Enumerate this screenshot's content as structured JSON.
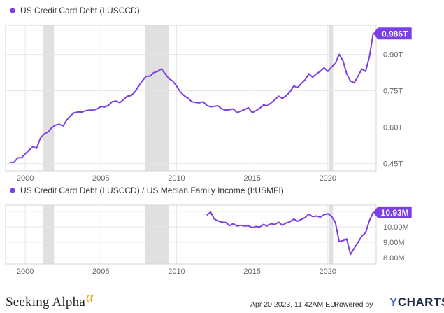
{
  "colors": {
    "series": "#7b3fe4",
    "recession": "#e0e0e0",
    "grid": "#e6e6e6",
    "axis_text": "#666666"
  },
  "chart_data": [
    {
      "type": "line",
      "legend": "US Credit Card Debt (I:USCCD)",
      "series": [
        {
          "name": "US Credit Card Debt (I:USCCD)",
          "points": [
            [
              1999.0,
              0.455
            ],
            [
              1999.25,
              0.455
            ],
            [
              1999.5,
              0.473
            ],
            [
              1999.75,
              0.474
            ],
            [
              2000.0,
              0.49
            ],
            [
              2000.25,
              0.505
            ],
            [
              2000.5,
              0.52
            ],
            [
              2000.75,
              0.513
            ],
            [
              2001.0,
              0.555
            ],
            [
              2001.25,
              0.572
            ],
            [
              2001.5,
              0.58
            ],
            [
              2001.75,
              0.598
            ],
            [
              2002.0,
              0.608
            ],
            [
              2002.25,
              0.612
            ],
            [
              2002.5,
              0.605
            ],
            [
              2002.75,
              0.63
            ],
            [
              2003.0,
              0.648
            ],
            [
              2003.25,
              0.66
            ],
            [
              2003.5,
              0.663
            ],
            [
              2003.75,
              0.662
            ],
            [
              2004.0,
              0.668
            ],
            [
              2004.25,
              0.67
            ],
            [
              2004.5,
              0.67
            ],
            [
              2004.75,
              0.675
            ],
            [
              2005.0,
              0.685
            ],
            [
              2005.25,
              0.683
            ],
            [
              2005.5,
              0.69
            ],
            [
              2005.75,
              0.705
            ],
            [
              2006.0,
              0.708
            ],
            [
              2006.25,
              0.701
            ],
            [
              2006.5,
              0.714
            ],
            [
              2006.75,
              0.728
            ],
            [
              2007.0,
              0.73
            ],
            [
              2007.25,
              0.745
            ],
            [
              2007.5,
              0.77
            ],
            [
              2007.75,
              0.792
            ],
            [
              2008.0,
              0.81
            ],
            [
              2008.25,
              0.81
            ],
            [
              2008.5,
              0.825
            ],
            [
              2008.75,
              0.83
            ],
            [
              2009.0,
              0.84
            ],
            [
              2009.25,
              0.82
            ],
            [
              2009.5,
              0.8
            ],
            [
              2009.75,
              0.79
            ],
            [
              2010.0,
              0.77
            ],
            [
              2010.25,
              0.745
            ],
            [
              2010.5,
              0.73
            ],
            [
              2010.75,
              0.72
            ],
            [
              2011.0,
              0.705
            ],
            [
              2011.25,
              0.702
            ],
            [
              2011.5,
              0.7
            ],
            [
              2011.75,
              0.705
            ],
            [
              2012.0,
              0.69
            ],
            [
              2012.25,
              0.684
            ],
            [
              2012.5,
              0.686
            ],
            [
              2012.75,
              0.688
            ],
            [
              2013.0,
              0.675
            ],
            [
              2013.25,
              0.67
            ],
            [
              2013.5,
              0.672
            ],
            [
              2013.75,
              0.675
            ],
            [
              2014.0,
              0.66
            ],
            [
              2014.25,
              0.666
            ],
            [
              2014.5,
              0.673
            ],
            [
              2014.75,
              0.68
            ],
            [
              2015.0,
              0.66
            ],
            [
              2015.25,
              0.668
            ],
            [
              2015.5,
              0.678
            ],
            [
              2015.75,
              0.692
            ],
            [
              2016.0,
              0.688
            ],
            [
              2016.25,
              0.7
            ],
            [
              2016.5,
              0.713
            ],
            [
              2016.75,
              0.728
            ],
            [
              2017.0,
              0.718
            ],
            [
              2017.25,
              0.73
            ],
            [
              2017.5,
              0.745
            ],
            [
              2017.75,
              0.77
            ],
            [
              2018.0,
              0.763
            ],
            [
              2018.25,
              0.78
            ],
            [
              2018.5,
              0.795
            ],
            [
              2018.75,
              0.82
            ],
            [
              2019.0,
              0.806
            ],
            [
              2019.25,
              0.82
            ],
            [
              2019.5,
              0.83
            ],
            [
              2019.75,
              0.845
            ],
            [
              2020.0,
              0.83
            ],
            [
              2020.25,
              0.848
            ],
            [
              2020.5,
              0.862
            ],
            [
              2020.75,
              0.9
            ],
            [
              2021.0,
              0.875
            ],
            [
              2021.25,
              0.82
            ],
            [
              2021.5,
              0.79
            ],
            [
              2021.75,
              0.783
            ],
            [
              2022.0,
              0.81
            ],
            [
              2022.25,
              0.84
            ],
            [
              2022.5,
              0.83
            ],
            [
              2022.75,
              0.89
            ],
            [
              2023.0,
              0.986
            ]
          ]
        }
      ],
      "xlim": [
        1998.7,
        2023.2
      ],
      "ylim": [
        0.42,
        1.02
      ],
      "x_ticks": [
        2000,
        2005,
        2010,
        2015,
        2020
      ],
      "y_ticks": [
        {
          "value": 0.45,
          "label": "0.45T"
        },
        {
          "value": 0.6,
          "label": "0.60T"
        },
        {
          "value": 0.75,
          "label": "0.75T"
        },
        {
          "value": 0.9,
          "label": "0.90T"
        }
      ],
      "last_value_label": "0.986T",
      "recessions": [
        [
          2001.2,
          2001.9
        ],
        [
          2007.9,
          2009.5
        ],
        [
          2020.1,
          2020.35
        ]
      ],
      "grid": true,
      "y_axis_side": "right"
    },
    {
      "type": "line",
      "legend": "US Credit Card Debt (I:USCCD) / US Median Family Income (I:USMFI)",
      "series": [
        {
          "name": "US Credit Card Debt (I:USCCD) / US Median Family Income (I:USMFI)",
          "points": [
            [
              2012.0,
              10.75
            ],
            [
              2012.25,
              10.95
            ],
            [
              2012.5,
              10.5
            ],
            [
              2012.75,
              10.38
            ],
            [
              2013.0,
              10.3
            ],
            [
              2013.25,
              10.28
            ],
            [
              2013.5,
              10.08
            ],
            [
              2013.75,
              10.2
            ],
            [
              2014.0,
              10.05
            ],
            [
              2014.25,
              10.1
            ],
            [
              2014.5,
              10.05
            ],
            [
              2014.75,
              10.07
            ],
            [
              2015.0,
              9.94
            ],
            [
              2015.25,
              10.02
            ],
            [
              2015.5,
              9.98
            ],
            [
              2015.75,
              10.15
            ],
            [
              2016.0,
              10.05
            ],
            [
              2016.25,
              10.2
            ],
            [
              2016.5,
              10.15
            ],
            [
              2016.75,
              10.3
            ],
            [
              2017.0,
              10.1
            ],
            [
              2017.25,
              10.25
            ],
            [
              2017.5,
              10.33
            ],
            [
              2017.75,
              10.5
            ],
            [
              2018.0,
              10.36
            ],
            [
              2018.25,
              10.48
            ],
            [
              2018.5,
              10.6
            ],
            [
              2018.75,
              10.82
            ],
            [
              2019.0,
              10.66
            ],
            [
              2019.25,
              10.7
            ],
            [
              2019.5,
              10.63
            ],
            [
              2019.75,
              10.78
            ],
            [
              2020.0,
              10.85
            ],
            [
              2020.25,
              10.68
            ],
            [
              2020.5,
              10.28
            ],
            [
              2020.75,
              9.05
            ],
            [
              2021.0,
              9.1
            ],
            [
              2021.25,
              9.22
            ],
            [
              2021.5,
              8.22
            ],
            [
              2021.75,
              8.62
            ],
            [
              2022.0,
              9.0
            ],
            [
              2022.25,
              9.4
            ],
            [
              2022.5,
              9.62
            ],
            [
              2022.75,
              10.4
            ],
            [
              2023.0,
              10.93
            ]
          ]
        }
      ],
      "xlim": [
        1998.7,
        2023.2
      ],
      "ylim": [
        7.6,
        11.4
      ],
      "x_ticks": [
        2000,
        2005,
        2010,
        2015,
        2020
      ],
      "y_ticks": [
        {
          "value": 8.0,
          "label": "8.00M"
        },
        {
          "value": 9.0,
          "label": "9.00M"
        },
        {
          "value": 10.0,
          "label": "10.00M"
        },
        {
          "value": 11.0,
          "label": "11.00M"
        }
      ],
      "last_value_label": "10.93M",
      "recessions": [
        [
          2001.2,
          2001.9
        ],
        [
          2007.9,
          2009.5
        ],
        [
          2020.1,
          2020.35
        ]
      ],
      "grid": true,
      "y_axis_side": "right"
    }
  ],
  "footer": {
    "brand": "Seeking Alpha",
    "brand_mark": "α",
    "timestamp": "Apr 20 2023, 11:42AM EDT.",
    "powered_by": "Powered by",
    "ycharts_y": "Y",
    "ycharts_rest": "CHARTS"
  }
}
